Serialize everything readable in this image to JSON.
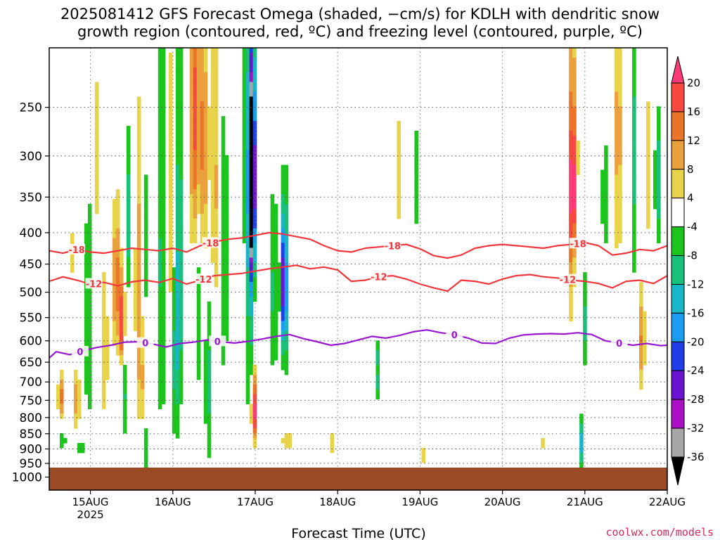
{
  "title": {
    "line1": "2025081412 GFS Forecast Omega (shaded, −cm/s) for KDLH with dendritic snow",
    "line2": "growth region (contoured, red, ºC) and freezing level (contoured, purple, ºC)"
  },
  "credit": "coolwx.com/models",
  "chart_data": {
    "type": "heatmap",
    "xlabel": "Forecast Time (UTC)",
    "x_ticks": [
      {
        "label": "15AUG",
        "sub": "2025",
        "t": 0
      },
      {
        "label": "16AUG",
        "t": 24
      },
      {
        "label": "17AUG",
        "t": 48
      },
      {
        "label": "18AUG",
        "t": 72
      },
      {
        "label": "19AUG",
        "t": 96
      },
      {
        "label": "20AUG",
        "t": 120
      },
      {
        "label": "21AUG",
        "t": 144
      },
      {
        "label": "22AUG",
        "t": 168
      }
    ],
    "x_range_hours": [
      -12,
      168
    ],
    "y_scale": "log-pressure",
    "y_range_hPa": [
      1050,
      200
    ],
    "y_ticks": [
      250,
      300,
      350,
      400,
      450,
      500,
      550,
      600,
      650,
      700,
      750,
      800,
      850,
      900,
      950,
      1000
    ],
    "grid": "dotted",
    "surface_pressure_hPa": 965,
    "colorbar": {
      "levels": [
        20,
        16,
        12,
        8,
        4,
        -4,
        -8,
        -12,
        -16,
        -20,
        -24,
        -28,
        -32,
        -36
      ],
      "colors": [
        "#ff3a78",
        "#f64a40",
        "#ec7428",
        "#eaa03c",
        "#e8d44a",
        "#ffffff",
        "#1ec41e",
        "#18c07a",
        "#1ab6c8",
        "#1a9cf0",
        "#1f3ee8",
        "#6a14d2",
        "#aa10c4",
        "#a6a6a6",
        "#000000"
      ]
    },
    "freezing_level_0C": {
      "color": "#9818d0",
      "label": "0",
      "label_t": [
        -3,
        16,
        37,
        106,
        154
      ],
      "t": [
        -12,
        -10,
        -6,
        -2,
        2,
        6,
        10,
        14,
        18,
        22,
        26,
        30,
        34,
        38,
        42,
        46,
        50,
        54,
        58,
        62,
        66,
        70,
        74,
        78,
        82,
        86,
        90,
        94,
        98,
        102,
        106,
        110,
        114,
        118,
        122,
        126,
        130,
        134,
        138,
        142,
        146,
        150,
        154,
        158,
        162,
        166,
        168
      ],
      "hPa": [
        640,
        625,
        632,
        622,
        615,
        610,
        603,
        602,
        607,
        614,
        606,
        603,
        598,
        602,
        605,
        601,
        596,
        590,
        586,
        595,
        602,
        610,
        606,
        598,
        590,
        594,
        588,
        580,
        576,
        582,
        586,
        594,
        605,
        606,
        594,
        587,
        585,
        584,
        585,
        582,
        586,
        600,
        605,
        610,
        606,
        611,
        610
      ]
    },
    "isotherm_minus12": {
      "color": "#f0363c",
      "label": "-12",
      "label_t": [
        1,
        33,
        84,
        139
      ],
      "t": [
        -12,
        -8,
        -4,
        0,
        4,
        8,
        12,
        16,
        20,
        24,
        28,
        32,
        36,
        40,
        44,
        48,
        52,
        56,
        60,
        64,
        68,
        72,
        76,
        80,
        84,
        88,
        92,
        96,
        100,
        104,
        108,
        112,
        116,
        120,
        124,
        128,
        132,
        136,
        140,
        144,
        148,
        152,
        156,
        160,
        164,
        168
      ],
      "hPa": [
        480,
        472,
        478,
        485,
        482,
        488,
        481,
        478,
        482,
        475,
        485,
        478,
        470,
        468,
        466,
        462,
        458,
        455,
        452,
        458,
        455,
        460,
        480,
        478,
        472,
        470,
        476,
        485,
        492,
        498,
        478,
        480,
        485,
        476,
        470,
        468,
        472,
        474,
        478,
        480,
        484,
        492,
        480,
        478,
        484,
        470
      ]
    },
    "isotherm_minus18": {
      "color": "#f0363c",
      "label": "-18",
      "label_t": [
        -4,
        35,
        88,
        142
      ],
      "t": [
        -12,
        -8,
        -4,
        0,
        4,
        8,
        12,
        16,
        20,
        24,
        28,
        32,
        36,
        40,
        44,
        48,
        52,
        56,
        60,
        64,
        68,
        72,
        76,
        80,
        84,
        88,
        92,
        96,
        100,
        104,
        108,
        112,
        116,
        120,
        124,
        128,
        132,
        136,
        140,
        144,
        148,
        152,
        156,
        160,
        164,
        168
      ],
      "hPa": [
        428,
        432,
        426,
        430,
        432,
        428,
        424,
        426,
        428,
        424,
        430,
        420,
        414,
        410,
        408,
        404,
        400,
        402,
        406,
        410,
        420,
        428,
        430,
        424,
        422,
        420,
        418,
        425,
        436,
        440,
        435,
        424,
        420,
        418,
        420,
        422,
        424,
        420,
        418,
        415,
        420,
        435,
        432,
        426,
        428,
        420
      ]
    }
  }
}
